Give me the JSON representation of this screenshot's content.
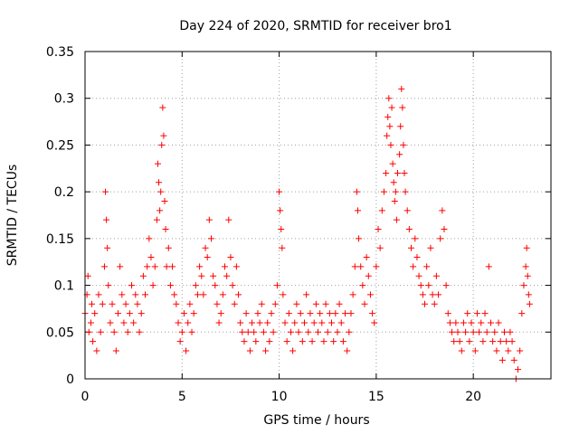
{
  "chart_data": {
    "type": "scatter",
    "title": "Day 224 of 2020, SRMTID for receiver bro1",
    "xlabel": "GPS time / hours",
    "ylabel": "SRMTID / TECUs",
    "xlim": [
      0,
      24
    ],
    "ylim": [
      0,
      0.35
    ],
    "xticks": [
      0,
      5,
      10,
      15,
      20
    ],
    "xtick_labels": [
      "0",
      "5",
      "10",
      "15",
      "20"
    ],
    "yticks": [
      0,
      0.05,
      0.1,
      0.15,
      0.2,
      0.25,
      0.3,
      0.35
    ],
    "ytick_labels": [
      "0",
      "0.05",
      "0.1",
      "0.15",
      "0.2",
      "0.25",
      "0.3",
      "0.35"
    ],
    "grid": true,
    "marker": "+",
    "color": "#ff0000",
    "series": [
      {
        "name": "SRMTID",
        "points": [
          [
            0.0,
            0.07
          ],
          [
            0.1,
            0.09
          ],
          [
            0.15,
            0.11
          ],
          [
            0.2,
            0.05
          ],
          [
            0.3,
            0.06
          ],
          [
            0.35,
            0.08
          ],
          [
            0.4,
            0.04
          ],
          [
            0.5,
            0.07
          ],
          [
            0.6,
            0.03
          ],
          [
            0.7,
            0.09
          ],
          [
            0.8,
            0.05
          ],
          [
            0.9,
            0.08
          ],
          [
            1.0,
            0.12
          ],
          [
            1.05,
            0.2
          ],
          [
            1.1,
            0.17
          ],
          [
            1.15,
            0.14
          ],
          [
            1.2,
            0.1
          ],
          [
            1.3,
            0.06
          ],
          [
            1.4,
            0.08
          ],
          [
            1.5,
            0.05
          ],
          [
            1.6,
            0.03
          ],
          [
            1.7,
            0.07
          ],
          [
            1.8,
            0.12
          ],
          [
            1.9,
            0.09
          ],
          [
            2.0,
            0.06
          ],
          [
            2.1,
            0.08
          ],
          [
            2.2,
            0.05
          ],
          [
            2.3,
            0.07
          ],
          [
            2.4,
            0.1
          ],
          [
            2.5,
            0.06
          ],
          [
            2.6,
            0.09
          ],
          [
            2.7,
            0.08
          ],
          [
            2.8,
            0.05
          ],
          [
            2.9,
            0.07
          ],
          [
            3.0,
            0.11
          ],
          [
            3.1,
            0.09
          ],
          [
            3.2,
            0.12
          ],
          [
            3.3,
            0.15
          ],
          [
            3.4,
            0.13
          ],
          [
            3.5,
            0.1
          ],
          [
            3.6,
            0.12
          ],
          [
            3.7,
            0.17
          ],
          [
            3.75,
            0.23
          ],
          [
            3.8,
            0.21
          ],
          [
            3.85,
            0.18
          ],
          [
            3.9,
            0.2
          ],
          [
            3.95,
            0.25
          ],
          [
            4.0,
            0.29
          ],
          [
            4.05,
            0.26
          ],
          [
            4.1,
            0.19
          ],
          [
            4.15,
            0.16
          ],
          [
            4.2,
            0.12
          ],
          [
            4.3,
            0.14
          ],
          [
            4.4,
            0.1
          ],
          [
            4.5,
            0.12
          ],
          [
            4.6,
            0.09
          ],
          [
            4.7,
            0.08
          ],
          [
            4.8,
            0.06
          ],
          [
            4.9,
            0.04
          ],
          [
            5.0,
            0.05
          ],
          [
            5.1,
            0.07
          ],
          [
            5.2,
            0.03
          ],
          [
            5.3,
            0.06
          ],
          [
            5.4,
            0.08
          ],
          [
            5.5,
            0.05
          ],
          [
            5.6,
            0.07
          ],
          [
            5.7,
            0.1
          ],
          [
            5.8,
            0.09
          ],
          [
            5.9,
            0.12
          ],
          [
            6.0,
            0.11
          ],
          [
            6.1,
            0.09
          ],
          [
            6.2,
            0.14
          ],
          [
            6.3,
            0.13
          ],
          [
            6.4,
            0.17
          ],
          [
            6.5,
            0.15
          ],
          [
            6.6,
            0.11
          ],
          [
            6.7,
            0.1
          ],
          [
            6.8,
            0.08
          ],
          [
            6.9,
            0.06
          ],
          [
            7.0,
            0.07
          ],
          [
            7.1,
            0.09
          ],
          [
            7.2,
            0.12
          ],
          [
            7.3,
            0.11
          ],
          [
            7.4,
            0.17
          ],
          [
            7.5,
            0.13
          ],
          [
            7.6,
            0.1
          ],
          [
            7.7,
            0.08
          ],
          [
            7.8,
            0.12
          ],
          [
            7.9,
            0.09
          ],
          [
            8.0,
            0.06
          ],
          [
            8.1,
            0.05
          ],
          [
            8.2,
            0.04
          ],
          [
            8.3,
            0.07
          ],
          [
            8.4,
            0.05
          ],
          [
            8.5,
            0.03
          ],
          [
            8.6,
            0.06
          ],
          [
            8.7,
            0.05
          ],
          [
            8.8,
            0.04
          ],
          [
            8.9,
            0.07
          ],
          [
            9.0,
            0.06
          ],
          [
            9.1,
            0.08
          ],
          [
            9.2,
            0.05
          ],
          [
            9.3,
            0.03
          ],
          [
            9.4,
            0.06
          ],
          [
            9.5,
            0.04
          ],
          [
            9.6,
            0.07
          ],
          [
            9.7,
            0.05
          ],
          [
            9.8,
            0.08
          ],
          [
            9.9,
            0.1
          ],
          [
            10.0,
            0.2
          ],
          [
            10.05,
            0.18
          ],
          [
            10.1,
            0.16
          ],
          [
            10.15,
            0.14
          ],
          [
            10.2,
            0.09
          ],
          [
            10.3,
            0.06
          ],
          [
            10.4,
            0.04
          ],
          [
            10.5,
            0.07
          ],
          [
            10.6,
            0.05
          ],
          [
            10.7,
            0.03
          ],
          [
            10.8,
            0.06
          ],
          [
            10.9,
            0.08
          ],
          [
            11.0,
            0.05
          ],
          [
            11.1,
            0.07
          ],
          [
            11.2,
            0.04
          ],
          [
            11.3,
            0.06
          ],
          [
            11.4,
            0.09
          ],
          [
            11.5,
            0.05
          ],
          [
            11.6,
            0.07
          ],
          [
            11.7,
            0.04
          ],
          [
            11.8,
            0.06
          ],
          [
            11.9,
            0.08
          ],
          [
            12.0,
            0.05
          ],
          [
            12.1,
            0.07
          ],
          [
            12.2,
            0.06
          ],
          [
            12.3,
            0.04
          ],
          [
            12.4,
            0.08
          ],
          [
            12.5,
            0.05
          ],
          [
            12.6,
            0.07
          ],
          [
            12.7,
            0.06
          ],
          [
            12.8,
            0.04
          ],
          [
            12.9,
            0.07
          ],
          [
            13.0,
            0.05
          ],
          [
            13.1,
            0.08
          ],
          [
            13.2,
            0.06
          ],
          [
            13.3,
            0.04
          ],
          [
            13.4,
            0.07
          ],
          [
            13.5,
            0.03
          ],
          [
            13.6,
            0.05
          ],
          [
            13.7,
            0.07
          ],
          [
            13.8,
            0.09
          ],
          [
            13.9,
            0.12
          ],
          [
            14.0,
            0.2
          ],
          [
            14.05,
            0.18
          ],
          [
            14.1,
            0.15
          ],
          [
            14.2,
            0.12
          ],
          [
            14.3,
            0.1
          ],
          [
            14.4,
            0.08
          ],
          [
            14.5,
            0.13
          ],
          [
            14.6,
            0.11
          ],
          [
            14.7,
            0.09
          ],
          [
            14.8,
            0.07
          ],
          [
            14.9,
            0.06
          ],
          [
            15.0,
            0.12
          ],
          [
            15.1,
            0.16
          ],
          [
            15.2,
            0.14
          ],
          [
            15.3,
            0.18
          ],
          [
            15.4,
            0.2
          ],
          [
            15.5,
            0.22
          ],
          [
            15.55,
            0.26
          ],
          [
            15.6,
            0.28
          ],
          [
            15.65,
            0.3
          ],
          [
            15.7,
            0.27
          ],
          [
            15.75,
            0.25
          ],
          [
            15.8,
            0.29
          ],
          [
            15.85,
            0.23
          ],
          [
            15.9,
            0.21
          ],
          [
            15.95,
            0.19
          ],
          [
            16.0,
            0.2
          ],
          [
            16.05,
            0.17
          ],
          [
            16.1,
            0.22
          ],
          [
            16.2,
            0.24
          ],
          [
            16.25,
            0.27
          ],
          [
            16.3,
            0.31
          ],
          [
            16.35,
            0.29
          ],
          [
            16.4,
            0.25
          ],
          [
            16.45,
            0.22
          ],
          [
            16.5,
            0.2
          ],
          [
            16.6,
            0.18
          ],
          [
            16.7,
            0.16
          ],
          [
            16.8,
            0.14
          ],
          [
            16.9,
            0.12
          ],
          [
            17.0,
            0.15
          ],
          [
            17.1,
            0.13
          ],
          [
            17.2,
            0.11
          ],
          [
            17.3,
            0.1
          ],
          [
            17.4,
            0.09
          ],
          [
            17.5,
            0.08
          ],
          [
            17.6,
            0.12
          ],
          [
            17.7,
            0.1
          ],
          [
            17.8,
            0.14
          ],
          [
            17.9,
            0.09
          ],
          [
            18.0,
            0.08
          ],
          [
            18.1,
            0.11
          ],
          [
            18.2,
            0.09
          ],
          [
            18.3,
            0.15
          ],
          [
            18.4,
            0.18
          ],
          [
            18.5,
            0.16
          ],
          [
            18.6,
            0.1
          ],
          [
            18.7,
            0.07
          ],
          [
            18.8,
            0.06
          ],
          [
            18.9,
            0.05
          ],
          [
            19.0,
            0.04
          ],
          [
            19.1,
            0.06
          ],
          [
            19.2,
            0.05
          ],
          [
            19.3,
            0.04
          ],
          [
            19.4,
            0.03
          ],
          [
            19.5,
            0.06
          ],
          [
            19.6,
            0.05
          ],
          [
            19.7,
            0.07
          ],
          [
            19.8,
            0.04
          ],
          [
            19.9,
            0.06
          ],
          [
            20.0,
            0.05
          ],
          [
            20.1,
            0.03
          ],
          [
            20.2,
            0.07
          ],
          [
            20.3,
            0.05
          ],
          [
            20.4,
            0.06
          ],
          [
            20.5,
            0.04
          ],
          [
            20.6,
            0.07
          ],
          [
            20.7,
            0.05
          ],
          [
            20.8,
            0.12
          ],
          [
            20.9,
            0.06
          ],
          [
            21.0,
            0.04
          ],
          [
            21.1,
            0.05
          ],
          [
            21.2,
            0.03
          ],
          [
            21.3,
            0.06
          ],
          [
            21.4,
            0.04
          ],
          [
            21.5,
            0.02
          ],
          [
            21.6,
            0.05
          ],
          [
            21.7,
            0.04
          ],
          [
            21.8,
            0.03
          ],
          [
            21.9,
            0.05
          ],
          [
            22.0,
            0.04
          ],
          [
            22.1,
            0.02
          ],
          [
            22.2,
            0.0
          ],
          [
            22.3,
            0.01
          ],
          [
            22.4,
            0.03
          ],
          [
            22.5,
            0.07
          ],
          [
            22.6,
            0.1
          ],
          [
            22.7,
            0.12
          ],
          [
            22.75,
            0.14
          ],
          [
            22.8,
            0.11
          ],
          [
            22.85,
            0.09
          ],
          [
            22.9,
            0.08
          ]
        ]
      }
    ]
  }
}
